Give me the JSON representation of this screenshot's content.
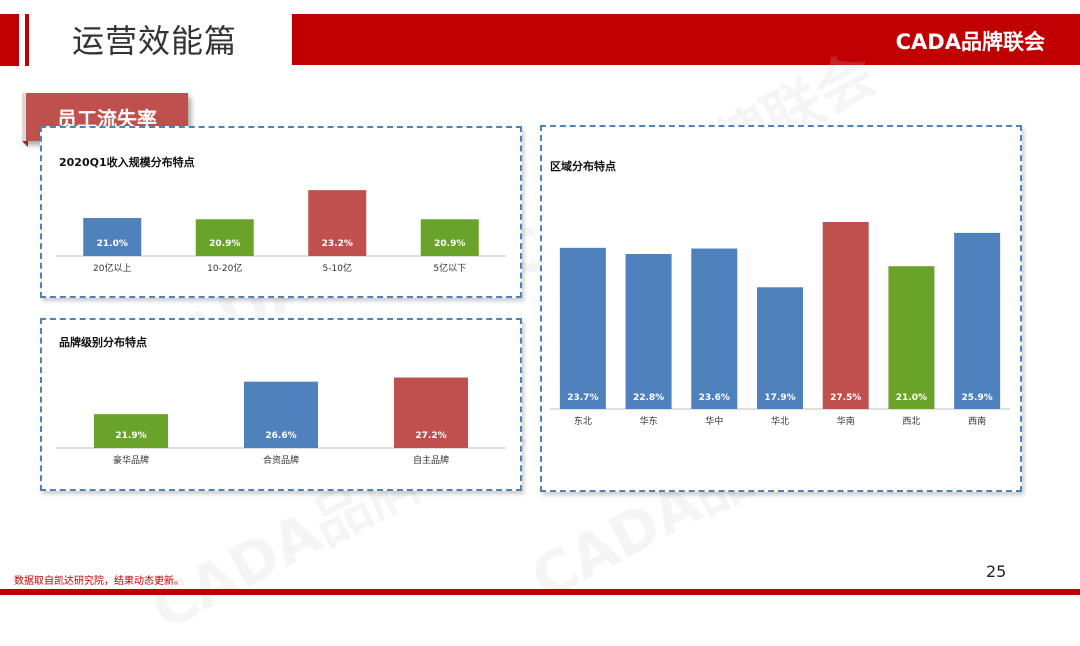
{
  "header": {
    "title": "运营效能篇",
    "brand": "CADA品牌联会"
  },
  "section": {
    "label": "员工流失率"
  },
  "watermark": {
    "text": "CADA品牌联会"
  },
  "footer": {
    "note": "数据取自凯达研究院，结果动态更新。",
    "page_number": "25"
  },
  "colors": {
    "red": "#c0504d",
    "blue": "#4f81bd",
    "green": "#6aa329",
    "brand_red": "#c00000"
  },
  "chart_data": [
    {
      "type": "bar",
      "title": "2020Q1收入规模分布特点",
      "categories": [
        "20亿以上",
        "10-20亿",
        "5-10亿",
        "5亿以下"
      ],
      "values": [
        21.0,
        20.9,
        23.2,
        20.9
      ],
      "labels": [
        "21.0%",
        "20.9%",
        "23.2%",
        "20.9%"
      ],
      "colors": [
        "#4f81bd",
        "#6aa329",
        "#c0504d",
        "#6aa329"
      ],
      "ylim": [
        18,
        24
      ]
    },
    {
      "type": "bar",
      "title": "品牌级别分布特点",
      "categories": [
        "豪华品牌",
        "合资品牌",
        "自主品牌"
      ],
      "values": [
        21.9,
        26.6,
        27.2
      ],
      "labels": [
        "21.9%",
        "26.6%",
        "27.2%"
      ],
      "colors": [
        "#6aa329",
        "#4f81bd",
        "#c0504d"
      ],
      "ylim": [
        17,
        28
      ]
    },
    {
      "type": "bar",
      "title": "区域分布特点",
      "categories": [
        "东北",
        "华东",
        "华中",
        "华北",
        "华南",
        "西北",
        "西南"
      ],
      "values": [
        23.7,
        22.8,
        23.6,
        17.9,
        27.5,
        21.0,
        25.9
      ],
      "labels": [
        "23.7%",
        "22.8%",
        "23.6%",
        "17.9%",
        "27.5%",
        "21.0%",
        "25.9%"
      ],
      "colors": [
        "#4f81bd",
        "#4f81bd",
        "#4f81bd",
        "#4f81bd",
        "#c0504d",
        "#6aa329",
        "#4f81bd"
      ],
      "ylim": [
        0,
        30
      ]
    }
  ]
}
